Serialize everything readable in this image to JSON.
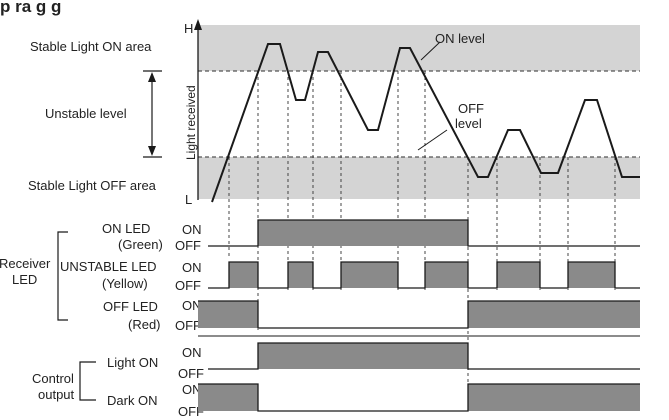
{
  "title": "p   ra    g  g",
  "axis": {
    "high_label": "H",
    "low_label": "L",
    "y_label": "Light received"
  },
  "areas": {
    "stable_on": "Stable Light ON area",
    "unstable": "Unstable level",
    "stable_off": "Stable Light OFF area"
  },
  "levels": {
    "on_level": "ON level",
    "off_level_line1": "OFF",
    "off_level_line2": "level"
  },
  "receiver": {
    "group_label_line1": "Receiver",
    "group_label_line2": "LED",
    "on_led_line1": "ON LED",
    "on_led_line2": "(Green)",
    "unstable_led_line1": "UNSTABLE LED",
    "unstable_led_line2": "(Yellow)",
    "off_led_line1": "OFF LED",
    "off_led_line2": "(Red)"
  },
  "control": {
    "group_label_line1": "Control",
    "group_label_line2": "output",
    "light_on": "Light ON",
    "dark_on": "Dark ON"
  },
  "state_labels": {
    "on": "ON",
    "off": "OFF"
  },
  "colors": {
    "stable_band": "#d4d4d4",
    "signal_fill": "#8a8a8a",
    "line": "#1a1a1a",
    "dashed": "#555555"
  }
}
